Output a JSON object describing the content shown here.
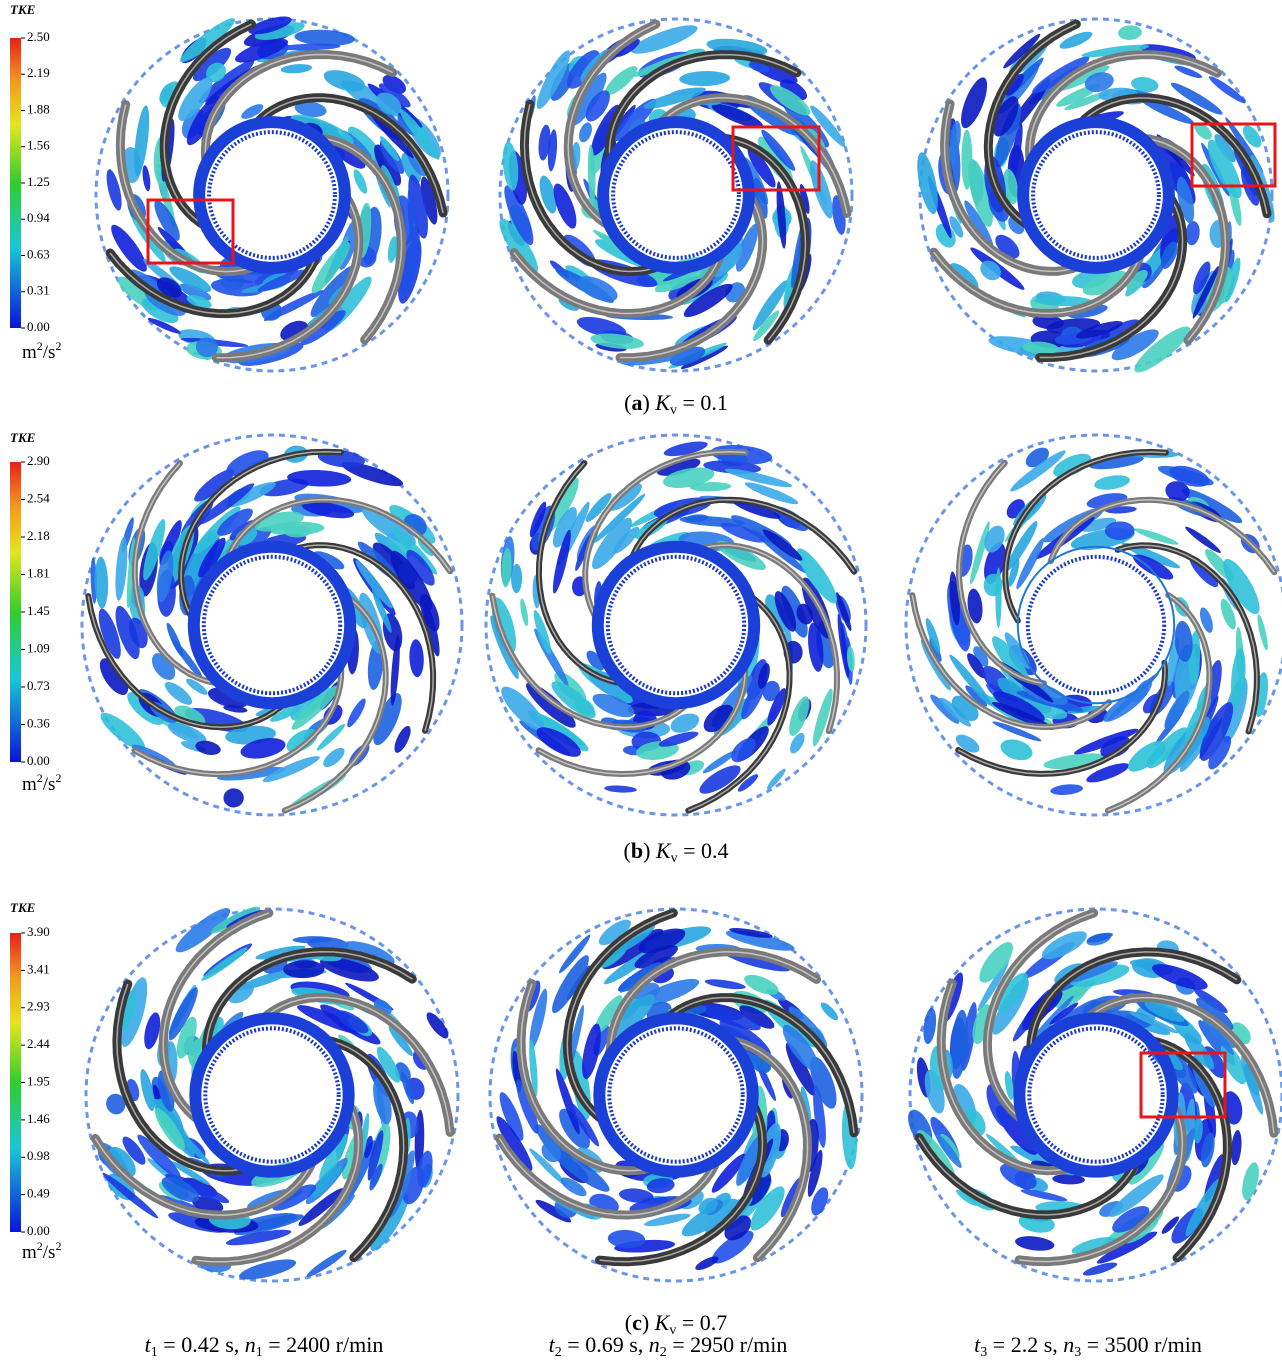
{
  "panels": [
    {
      "legend": {
        "title": "TKE",
        "ticks": [
          "2.50",
          "2.19",
          "1.88",
          "1.56",
          "1.25",
          "0.94",
          "0.63",
          "0.31",
          "0.00"
        ],
        "unit": {
          "base": "m",
          "exp1": "2",
          "mid": "/s",
          "exp2": "2"
        }
      },
      "caption": {
        "label": "a",
        "symbol": "K",
        "subscript": "v",
        "value": "= 0.1"
      }
    },
    {
      "legend": {
        "title": "TKE",
        "ticks": [
          "2.90",
          "2.54",
          "2.18",
          "1.81",
          "1.45",
          "1.09",
          "0.73",
          "0.36",
          "0.00"
        ],
        "unit": {
          "base": "m",
          "exp1": "2",
          "mid": "/s",
          "exp2": "2"
        }
      },
      "caption": {
        "label": "b",
        "symbol": "K",
        "subscript": "v",
        "value": "= 0.4"
      }
    },
    {
      "legend": {
        "title": "TKE",
        "ticks": [
          "3.90",
          "3.41",
          "2.93",
          "2.44",
          "1.95",
          "1.46",
          "0.98",
          "0.49",
          "0.00"
        ],
        "unit": {
          "base": "m",
          "exp1": "2",
          "mid": "/s",
          "exp2": "2"
        }
      },
      "caption": {
        "label": "c",
        "symbol": "K",
        "subscript": "v",
        "value": "= 0.7"
      }
    }
  ],
  "time_labels": [
    {
      "t": "t",
      "t_sub": "1",
      "t_value": "= 0.42 s,",
      "n": "n",
      "n_sub": "1",
      "n_value": "= 2400 r/min"
    },
    {
      "t": "t",
      "t_sub": "2",
      "t_value": "= 0.69 s,",
      "n": "n",
      "n_sub": "2",
      "n_value": "= 2950 r/min"
    },
    {
      "t": "t",
      "t_sub": "3",
      "t_value": "= 2.2 s,",
      "n": "n",
      "n_sub": "3",
      "n_value": "= 3500 r/min"
    }
  ]
}
